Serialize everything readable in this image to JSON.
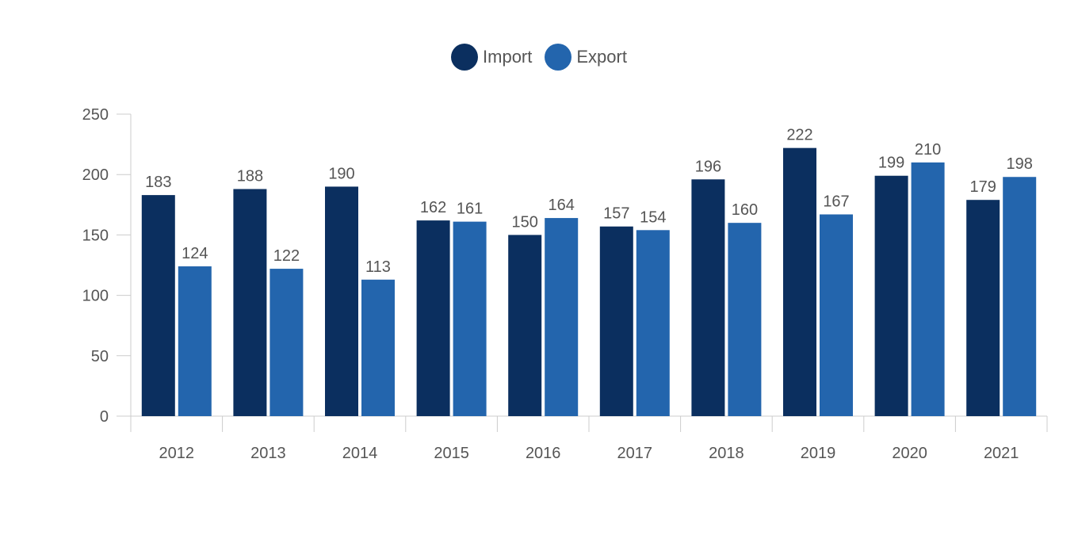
{
  "chart_data": {
    "type": "bar",
    "categories": [
      "2012",
      "2013",
      "2014",
      "2015",
      "2016",
      "2017",
      "2018",
      "2019",
      "2020",
      "2021"
    ],
    "series": [
      {
        "name": "Import",
        "color": "#0b2f5f",
        "values": [
          183,
          188,
          190,
          162,
          150,
          157,
          196,
          222,
          199,
          179
        ]
      },
      {
        "name": "Export",
        "color": "#2365ad",
        "values": [
          124,
          122,
          113,
          161,
          164,
          154,
          160,
          167,
          210,
          198
        ]
      }
    ],
    "yticks": [
      "0",
      "50",
      "100",
      "150",
      "200",
      "250"
    ],
    "ylim": [
      0,
      250
    ],
    "legend_position": "top-center",
    "grid": false,
    "data_labels": true
  }
}
